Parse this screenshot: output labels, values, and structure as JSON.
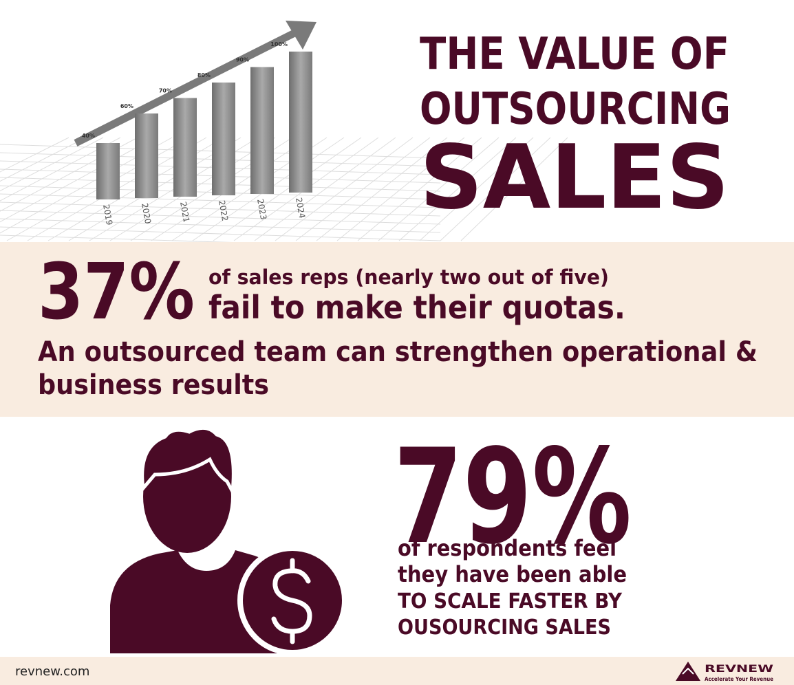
{
  "header": {
    "title_lines": [
      "THE VALUE OF",
      "OUTSOURCING",
      "SALES"
    ]
  },
  "chart_data": {
    "type": "bar",
    "categories": [
      "2019",
      "2020",
      "2021",
      "2022",
      "2023",
      "2024"
    ],
    "values": [
      40,
      60,
      70,
      80,
      90,
      100
    ],
    "value_labels": [
      "40%",
      "60%",
      "70%",
      "80%",
      "90%",
      "100%"
    ]
  },
  "stat1": {
    "value": "37%",
    "lines": [
      "of sales reps (nearly two out of five)",
      "fail to make their quotas."
    ],
    "note_lines": [
      "An outsourced team can strengthen operational &",
      "business results"
    ]
  },
  "stat2": {
    "value": "79%",
    "lines": [
      "of respondents feel",
      "they have been able",
      "TO SCALE FASTER BY",
      "OUSOURCING SALES"
    ]
  },
  "footer": {
    "website": "revnew.com",
    "logo": "REVNEW",
    "tagline": "Accelerate Your Revenue"
  }
}
